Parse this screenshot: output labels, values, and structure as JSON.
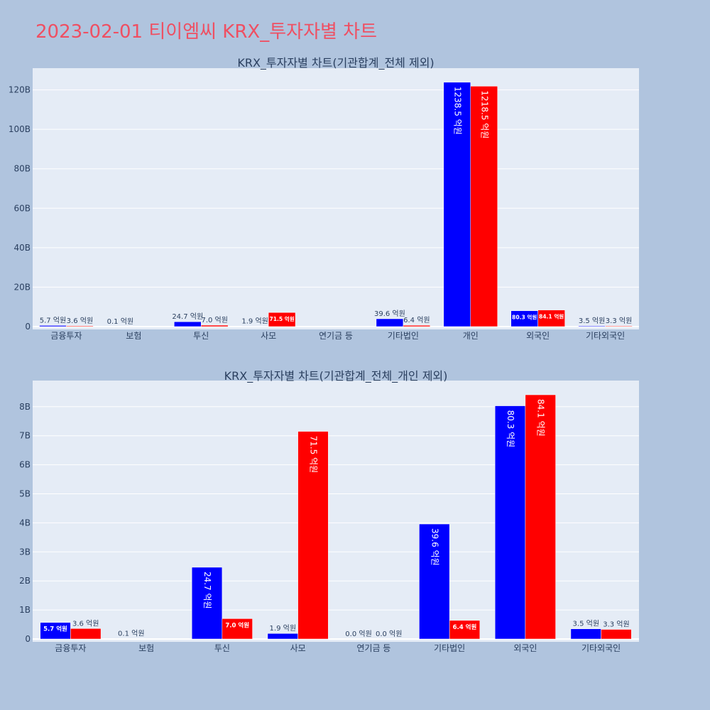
{
  "page": {
    "title": "2023-02-01 티이엠씨 KRX_투자자별 차트"
  },
  "chart_data": [
    {
      "type": "bar",
      "title": "KRX_투자자별 차트(기관합계_전체 제외)",
      "categories": [
        "금융투자",
        "보험",
        "투신",
        "사모",
        "연기금 등",
        "기타법인",
        "개인",
        "외국인",
        "기타외국인"
      ],
      "series": [
        {
          "color": "#0000ff",
          "values": [
            0.57,
            0.01,
            2.47,
            0.19,
            0,
            3.96,
            123.85,
            8.03,
            0.35
          ],
          "labels": [
            "5.7 억원",
            "0.1 억원",
            "24.7 억원",
            "1.9 억원",
            "",
            "39.6 억원",
            "1238.5 억원",
            "80.3 억원",
            "3.5 억원"
          ]
        },
        {
          "color": "#ff0000",
          "values": [
            0.36,
            0,
            0.7,
            7.15,
            0,
            0.64,
            121.85,
            8.41,
            0.33
          ],
          "labels": [
            "3.6 억원",
            "",
            "7.0 억원",
            "71.5 억원",
            "",
            "6.4 억원",
            "1218.5 억원",
            "84.1 억원",
            "3.3 억원"
          ]
        }
      ],
      "yticks": [
        "0",
        "20B",
        "40B",
        "60B",
        "80B",
        "100B",
        "120B"
      ],
      "ylim": [
        0,
        131
      ],
      "grid": true
    },
    {
      "type": "bar",
      "title": "KRX_투자자별 차트(기관합계_전체_개인 제외)",
      "categories": [
        "금융투자",
        "보험",
        "투신",
        "사모",
        "연기금 등",
        "기타법인",
        "외국인",
        "기타외국인"
      ],
      "series": [
        {
          "color": "#0000ff",
          "values": [
            0.57,
            0.01,
            2.47,
            0.19,
            0,
            3.96,
            8.03,
            0.35
          ],
          "labels": [
            "5.7 억원",
            "0.1 억원",
            "24.7 억원",
            "1.9 억원",
            "0.0 억원",
            "39.6 억원",
            "80.3 억원",
            "3.5 억원"
          ]
        },
        {
          "color": "#ff0000",
          "values": [
            0.36,
            0,
            0.7,
            7.15,
            0,
            0.64,
            8.41,
            0.33
          ],
          "labels": [
            "3.6 억원",
            "",
            "7.0 억원",
            "71.5 억원",
            "0.0 억원",
            "6.4 억원",
            "84.1 억원",
            "3.3 억원"
          ]
        }
      ],
      "yticks": [
        "0",
        "1B",
        "2B",
        "3B",
        "4B",
        "5B",
        "6B",
        "7B",
        "8B"
      ],
      "ylim": [
        0,
        8.9
      ],
      "grid": true
    }
  ]
}
